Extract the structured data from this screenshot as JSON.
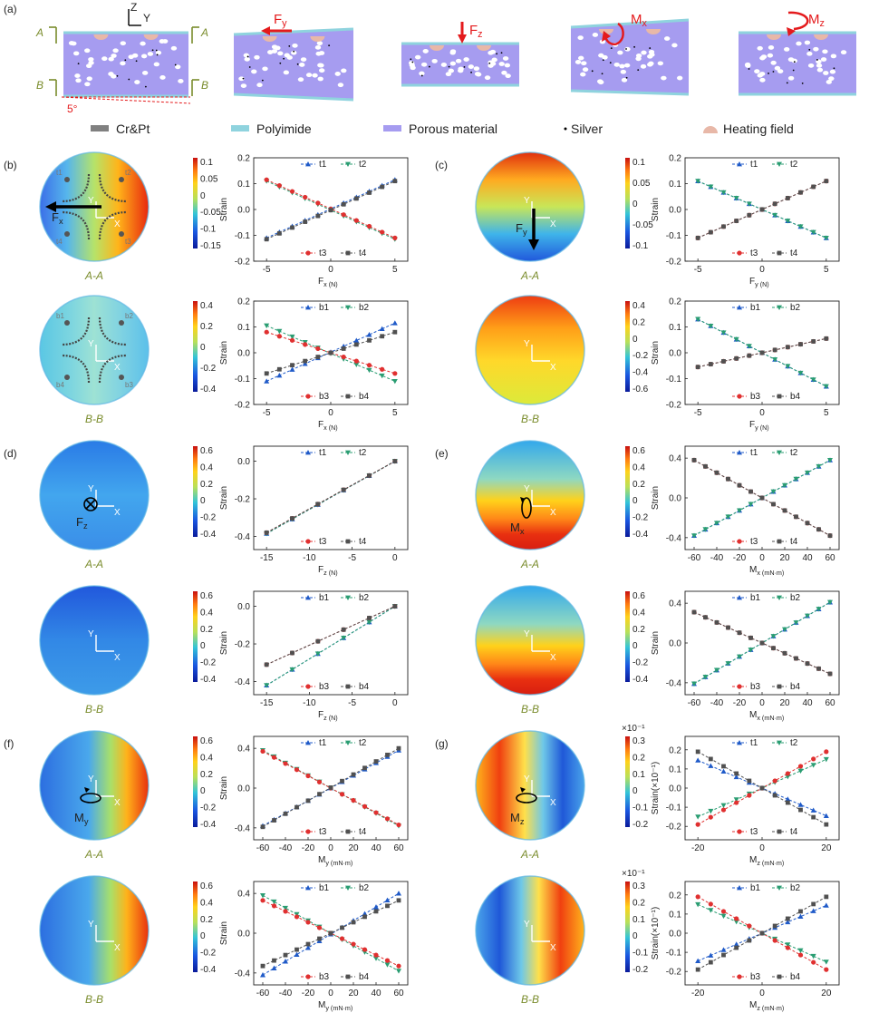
{
  "figure": {
    "panel_labels": [
      "(a)",
      "(b)",
      "(c)",
      "(d)",
      "(e)",
      "(f)",
      "(g)"
    ]
  },
  "schematic": {
    "axis_z": "Z",
    "axis_y": "Y",
    "section_a": "A",
    "section_b": "B",
    "angle": "5°",
    "force_labels": [
      {
        "base": "F",
        "sub": "y"
      },
      {
        "base": "F",
        "sub": "z"
      },
      {
        "base": "M",
        "sub": "x"
      },
      {
        "base": "M",
        "sub": "z"
      }
    ],
    "legend": [
      {
        "label": "Cr&Pt",
        "color": "#808080",
        "kind": "bar"
      },
      {
        "label": "Polyimide",
        "color": "#8fd3de",
        "kind": "bar"
      },
      {
        "label": "Porous  material",
        "color": "#a69cf0",
        "kind": "bar"
      },
      {
        "label": "Silver",
        "color": "#000000",
        "kind": "dot"
      },
      {
        "label": "Heating field",
        "color": "#e8b8a8",
        "kind": "dome"
      }
    ],
    "colors": {
      "porous": "#a69cf0",
      "polyimide": "#8fd3de",
      "arrow": "#e41a1c",
      "section": "#7a8c2c"
    }
  },
  "common": {
    "strain_label": "Strain",
    "strain_label_scaled": "Strain(×10⁻¹)",
    "scale_note": "×10⁻¹",
    "section_aa": "A-A",
    "section_bb": "B-B",
    "axis_x": "X",
    "axis_y": "Y",
    "series_colors": {
      "t1": "#1f5ac8",
      "b1": "#1f5ac8",
      "t2": "#2a9d72",
      "b2": "#2a9d72",
      "t3": "#e03030",
      "b3": "#e03030",
      "t4": "#505050",
      "b4": "#505050"
    },
    "series_markers": {
      "t1": "triangle-up",
      "b1": "triangle-up",
      "t2": "triangle-down",
      "b2": "triangle-down",
      "t3": "circle",
      "b3": "circle",
      "t4": "square",
      "b4": "square"
    }
  },
  "chart_data": [
    {
      "panel": "b",
      "section": "A-A",
      "type": "line",
      "load": {
        "base": "F",
        "sub": "x"
      },
      "unit": "N",
      "xlabel": "Fx (N)",
      "ylabel": "Strain",
      "x": [
        -5,
        -4,
        -3,
        -2,
        -1,
        0,
        1,
        2,
        3,
        4,
        5
      ],
      "xlim": [
        -6,
        6
      ],
      "xticks": [
        -5,
        0,
        5
      ],
      "ylim": [
        -0.2,
        0.2
      ],
      "yticks": [
        -0.2,
        -0.1,
        0.0,
        0.1,
        0.2
      ],
      "series": [
        {
          "name": "t1",
          "a": -0.11,
          "b": 0.115
        },
        {
          "name": "t2",
          "a": 0.11,
          "b": -0.115
        },
        {
          "name": "t3",
          "a": 0.115,
          "b": -0.11
        },
        {
          "name": "t4",
          "a": -0.115,
          "b": 0.11
        }
      ]
    },
    {
      "panel": "b",
      "section": "B-B",
      "type": "line",
      "load": {
        "base": "F",
        "sub": "x"
      },
      "unit": "N",
      "xlabel": "Fx (N)",
      "ylabel": "Strain",
      "x": [
        -5,
        -4,
        -3,
        -2,
        -1,
        0,
        1,
        2,
        3,
        4,
        5
      ],
      "xlim": [
        -6,
        6
      ],
      "xticks": [
        -5,
        0,
        5
      ],
      "ylim": [
        -0.2,
        0.2
      ],
      "yticks": [
        -0.2,
        -0.1,
        0.0,
        0.1,
        0.2
      ],
      "series": [
        {
          "name": "b1",
          "a": -0.11,
          "b": 0.115
        },
        {
          "name": "b2",
          "a": 0.105,
          "b": -0.11
        },
        {
          "name": "b3",
          "a": 0.08,
          "b": -0.08
        },
        {
          "name": "b4",
          "a": -0.08,
          "b": 0.08
        }
      ]
    },
    {
      "panel": "c",
      "section": "A-A",
      "type": "line",
      "load": {
        "base": "F",
        "sub": "y"
      },
      "unit": "N",
      "xlabel": "Fy (N)",
      "ylabel": "Strain",
      "x": [
        -5,
        -4,
        -3,
        -2,
        -1,
        0,
        1,
        2,
        3,
        4,
        5
      ],
      "xlim": [
        -6,
        6
      ],
      "xticks": [
        -5,
        0,
        5
      ],
      "ylim": [
        -0.2,
        0.2
      ],
      "yticks": [
        -0.2,
        -0.1,
        0.0,
        0.1,
        0.2
      ],
      "series": [
        {
          "name": "t1",
          "a": 0.11,
          "b": -0.11
        },
        {
          "name": "t2",
          "a": 0.11,
          "b": -0.11
        },
        {
          "name": "t3",
          "a": -0.11,
          "b": 0.11
        },
        {
          "name": "t4",
          "a": -0.11,
          "b": 0.11
        }
      ]
    },
    {
      "panel": "c",
      "section": "B-B",
      "type": "line",
      "load": {
        "base": "F",
        "sub": "y"
      },
      "unit": "N",
      "xlabel": "Fy (N)",
      "ylabel": "Strain",
      "x": [
        -5,
        -4,
        -3,
        -2,
        -1,
        0,
        1,
        2,
        3,
        4,
        5
      ],
      "xlim": [
        -6,
        6
      ],
      "xticks": [
        -5,
        0,
        5
      ],
      "ylim": [
        -0.2,
        0.2
      ],
      "yticks": [
        -0.2,
        -0.1,
        0.0,
        0.1,
        0.2
      ],
      "series": [
        {
          "name": "b1",
          "a": 0.13,
          "b": -0.13
        },
        {
          "name": "b2",
          "a": 0.13,
          "b": -0.13
        },
        {
          "name": "b3",
          "a": -0.055,
          "b": 0.055
        },
        {
          "name": "b4",
          "a": -0.055,
          "b": 0.055
        }
      ]
    },
    {
      "panel": "d",
      "section": "A-A",
      "type": "line",
      "load": {
        "base": "F",
        "sub": "z"
      },
      "unit": "N",
      "xlabel": "Fz (N)",
      "ylabel": "Strain",
      "x": [
        -15,
        -12,
        -9,
        -6,
        -3,
        0
      ],
      "xlim": [
        -16.5,
        1.5
      ],
      "xticks": [
        -15,
        -10,
        -5,
        0
      ],
      "ylim": [
        -0.47,
        0.08
      ],
      "yticks": [
        -0.4,
        -0.2,
        0.0
      ],
      "series": [
        {
          "name": "t1",
          "a": -0.385,
          "b": 0.0
        },
        {
          "name": "t2",
          "a": -0.385,
          "b": 0.0
        },
        {
          "name": "t3",
          "a": -0.38,
          "b": 0.0
        },
        {
          "name": "t4",
          "a": -0.38,
          "b": 0.0
        }
      ]
    },
    {
      "panel": "d",
      "section": "B-B",
      "type": "line",
      "load": {
        "base": "F",
        "sub": "z"
      },
      "unit": "N",
      "xlabel": "Fz (N)",
      "ylabel": "Strain",
      "x": [
        -15,
        -12,
        -9,
        -6,
        -3,
        0
      ],
      "xlim": [
        -16.5,
        1.5
      ],
      "xticks": [
        -15,
        -10,
        -5,
        0
      ],
      "ylim": [
        -0.47,
        0.08
      ],
      "yticks": [
        -0.4,
        -0.2,
        0.0
      ],
      "series": [
        {
          "name": "b1",
          "a": -0.42,
          "b": 0.0
        },
        {
          "name": "b2",
          "a": -0.42,
          "b": 0.0
        },
        {
          "name": "b3",
          "a": -0.31,
          "b": 0.0
        },
        {
          "name": "b4",
          "a": -0.31,
          "b": 0.0
        }
      ]
    },
    {
      "panel": "e",
      "section": "A-A",
      "type": "line",
      "load": {
        "base": "M",
        "sub": "x"
      },
      "unit": "mN·m",
      "xlabel": "Mx (mN·m)",
      "ylabel": "Strain",
      "x": [
        -60,
        -50,
        -40,
        -30,
        -20,
        -10,
        0,
        10,
        20,
        30,
        40,
        50,
        60
      ],
      "xlim": [
        -68,
        68
      ],
      "xticks": [
        -60,
        -40,
        -20,
        0,
        20,
        40,
        60
      ],
      "ylim": [
        -0.52,
        0.52
      ],
      "yticks": [
        -0.4,
        0.0,
        0.4
      ],
      "series": [
        {
          "name": "t1",
          "a": -0.38,
          "b": 0.38
        },
        {
          "name": "t2",
          "a": -0.38,
          "b": 0.38
        },
        {
          "name": "t3",
          "a": 0.38,
          "b": -0.38
        },
        {
          "name": "t4",
          "a": 0.38,
          "b": -0.38
        }
      ]
    },
    {
      "panel": "e",
      "section": "B-B",
      "type": "line",
      "load": {
        "base": "M",
        "sub": "x"
      },
      "unit": "mN·m",
      "xlabel": "Mx (mN·m)",
      "ylabel": "Strain",
      "x": [
        -60,
        -50,
        -40,
        -30,
        -20,
        -10,
        0,
        10,
        20,
        30,
        40,
        50,
        60
      ],
      "xlim": [
        -68,
        68
      ],
      "xticks": [
        -60,
        -40,
        -20,
        0,
        20,
        40,
        60
      ],
      "ylim": [
        -0.52,
        0.52
      ],
      "yticks": [
        -0.4,
        0.0,
        0.4
      ],
      "series": [
        {
          "name": "b1",
          "a": -0.41,
          "b": 0.41
        },
        {
          "name": "b2",
          "a": -0.41,
          "b": 0.41
        },
        {
          "name": "b3",
          "a": 0.31,
          "b": -0.31
        },
        {
          "name": "b4",
          "a": 0.31,
          "b": -0.31
        }
      ]
    },
    {
      "panel": "f",
      "section": "A-A",
      "type": "line",
      "load": {
        "base": "M",
        "sub": "y"
      },
      "unit": "mN·m",
      "xlabel": "My (mN·m)",
      "ylabel": "Strain",
      "x": [
        -60,
        -50,
        -40,
        -30,
        -20,
        -10,
        0,
        10,
        20,
        30,
        40,
        50,
        60
      ],
      "xlim": [
        -68,
        68
      ],
      "xticks": [
        -60,
        -40,
        -20,
        0,
        20,
        40,
        60
      ],
      "ylim": [
        -0.52,
        0.52
      ],
      "yticks": [
        -0.4,
        0.0,
        0.4
      ],
      "series": [
        {
          "name": "t1",
          "a": -0.38,
          "b": 0.38
        },
        {
          "name": "t2",
          "a": 0.38,
          "b": -0.38
        },
        {
          "name": "t3",
          "a": 0.37,
          "b": -0.37
        },
        {
          "name": "t4",
          "a": -0.39,
          "b": 0.4
        }
      ]
    },
    {
      "panel": "f",
      "section": "B-B",
      "type": "line",
      "load": {
        "base": "M",
        "sub": "y"
      },
      "unit": "mN·m",
      "xlabel": "My (mN·m)",
      "ylabel": "Strain",
      "x": [
        -60,
        -50,
        -40,
        -30,
        -20,
        -10,
        0,
        10,
        20,
        30,
        40,
        50,
        60
      ],
      "xlim": [
        -68,
        68
      ],
      "xticks": [
        -60,
        -40,
        -20,
        0,
        20,
        40,
        60
      ],
      "ylim": [
        -0.52,
        0.52
      ],
      "yticks": [
        -0.4,
        0.0,
        0.4
      ],
      "series": [
        {
          "name": "b1",
          "a": -0.42,
          "b": 0.4
        },
        {
          "name": "b2",
          "a": 0.38,
          "b": -0.38
        },
        {
          "name": "b3",
          "a": 0.33,
          "b": -0.33
        },
        {
          "name": "b4",
          "a": -0.33,
          "b": 0.33
        }
      ]
    },
    {
      "panel": "g",
      "section": "A-A",
      "type": "line",
      "load": {
        "base": "M",
        "sub": "z"
      },
      "unit": "mN·m",
      "xlabel": "Mz (mN·m)",
      "ylabel": "Strain(×10⁻¹)",
      "x": [
        -20,
        -16,
        -12,
        -8,
        -4,
        0,
        4,
        8,
        12,
        16,
        20
      ],
      "xlim": [
        -24,
        24
      ],
      "xticks": [
        -20,
        0,
        20
      ],
      "ylim": [
        -0.27,
        0.27
      ],
      "yticks": [
        -0.2,
        -0.1,
        0.0,
        0.1,
        0.2
      ],
      "series": [
        {
          "name": "t1",
          "a": 0.145,
          "b": -0.145
        },
        {
          "name": "t2",
          "a": -0.15,
          "b": 0.15
        },
        {
          "name": "t3",
          "a": -0.19,
          "b": 0.19
        },
        {
          "name": "t4",
          "a": 0.19,
          "b": -0.19
        }
      ]
    },
    {
      "panel": "g",
      "section": "B-B",
      "type": "line",
      "load": {
        "base": "M",
        "sub": "z"
      },
      "unit": "mN·m",
      "xlabel": "Mz (mN·m)",
      "ylabel": "Strain(×10⁻¹)",
      "x": [
        -20,
        -16,
        -12,
        -8,
        -4,
        0,
        4,
        8,
        12,
        16,
        20
      ],
      "xlim": [
        -24,
        24
      ],
      "xticks": [
        -20,
        0,
        20
      ],
      "ylim": [
        -0.27,
        0.27
      ],
      "yticks": [
        -0.2,
        -0.1,
        0.0,
        0.1,
        0.2
      ],
      "series": [
        {
          "name": "b1",
          "a": -0.145,
          "b": 0.145
        },
        {
          "name": "b2",
          "a": 0.15,
          "b": -0.15
        },
        {
          "name": "b3",
          "a": 0.19,
          "b": -0.19
        },
        {
          "name": "b4",
          "a": -0.19,
          "b": 0.19
        }
      ]
    }
  ],
  "heatmaps": [
    {
      "panel": "b",
      "section": "A-A",
      "pattern": "lr",
      "scale": 1,
      "colorbar_ticks": [
        "0.1",
        "0.05",
        "0",
        "-0.05",
        "-0.1",
        "-0.15"
      ],
      "load": {
        "base": "F",
        "sub": "x"
      },
      "sensors": [
        "t1",
        "t2",
        "t3",
        "t4"
      ]
    },
    {
      "panel": "b",
      "section": "B-B",
      "pattern": "flat",
      "scale": 1,
      "colorbar_ticks": [
        "0.4",
        "0.2",
        "0",
        "-0.2",
        "-0.4"
      ],
      "load": null,
      "sensors": [
        "b1",
        "b2",
        "b3",
        "b4"
      ]
    },
    {
      "panel": "c",
      "section": "A-A",
      "pattern": "tb",
      "scale": 1,
      "colorbar_ticks": [
        "0.1",
        "0.05",
        "0",
        "-0.05",
        "-0.1"
      ],
      "load": {
        "base": "F",
        "sub": "y"
      },
      "sensors": []
    },
    {
      "panel": "c",
      "section": "B-B",
      "pattern": "tb_warm",
      "scale": 1,
      "colorbar_ticks": [
        "0.4",
        "0.2",
        "0",
        "-0.2",
        "-0.4",
        "-0.6"
      ],
      "load": null,
      "sensors": []
    },
    {
      "panel": "d",
      "section": "A-A",
      "pattern": "uniform_low",
      "scale": 1,
      "colorbar_ticks": [
        "0.6",
        "0.4",
        "0.2",
        "0",
        "-0.2",
        "-0.4"
      ],
      "load": {
        "base": "F",
        "sub": "z"
      },
      "sensors": []
    },
    {
      "panel": "d",
      "section": "B-B",
      "pattern": "uniform_low2",
      "scale": 1,
      "colorbar_ticks": [
        "0.6",
        "0.4",
        "0.2",
        "0",
        "-0.2",
        "-0.4"
      ],
      "load": null,
      "sensors": []
    },
    {
      "panel": "e",
      "section": "A-A",
      "pattern": "band",
      "scale": 1,
      "colorbar_ticks": [
        "0.6",
        "0.4",
        "0.2",
        "0",
        "-0.2",
        "-0.4"
      ],
      "load": {
        "base": "M",
        "sub": "x"
      },
      "sensors": []
    },
    {
      "panel": "e",
      "section": "B-B",
      "pattern": "band",
      "scale": 1,
      "colorbar_ticks": [
        "0.6",
        "0.4",
        "0.2",
        "0",
        "-0.2",
        "-0.4"
      ],
      "load": null,
      "sensors": []
    },
    {
      "panel": "f",
      "section": "A-A",
      "pattern": "right_warm",
      "scale": 1,
      "colorbar_ticks": [
        "0.6",
        "0.4",
        "0.2",
        "0",
        "-0.2",
        "-0.4"
      ],
      "load": {
        "base": "M",
        "sub": "y"
      },
      "sensors": []
    },
    {
      "panel": "f",
      "section": "B-B",
      "pattern": "right_warm",
      "scale": 1,
      "colorbar_ticks": [
        "0.6",
        "0.4",
        "0.2",
        "0",
        "-0.2",
        "-0.4"
      ],
      "load": null,
      "sensors": []
    },
    {
      "panel": "g",
      "section": "A-A",
      "pattern": "mz_a",
      "scale": 0.1,
      "colorbar_ticks": [
        "0.3",
        "0.2",
        "0.1",
        "0",
        "-0.1",
        "-0.2"
      ],
      "load": {
        "base": "M",
        "sub": "z"
      },
      "sensors": []
    },
    {
      "panel": "g",
      "section": "B-B",
      "pattern": "mz_b",
      "scale": 0.1,
      "colorbar_ticks": [
        "0.3",
        "0.2",
        "0.1",
        "0",
        "-0.1",
        "-0.2"
      ],
      "load": null,
      "sensors": []
    }
  ]
}
